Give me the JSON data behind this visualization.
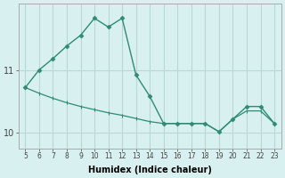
{
  "xlabel": "Humidex (Indice chaleur)",
  "x_values": [
    5,
    6,
    7,
    8,
    9,
    10,
    11,
    12,
    13,
    14,
    15,
    16,
    17,
    18,
    19,
    20,
    21,
    22,
    23
  ],
  "y_main": [
    10.72,
    11.0,
    11.18,
    11.38,
    11.55,
    11.82,
    11.68,
    11.82,
    10.92,
    10.58,
    10.15,
    10.15,
    10.15,
    10.15,
    10.02,
    10.22,
    10.42,
    10.42,
    10.15
  ],
  "y_second": [
    10.72,
    10.63,
    10.55,
    10.48,
    10.42,
    10.37,
    10.32,
    10.28,
    10.23,
    10.18,
    10.15,
    10.15,
    10.15,
    10.15,
    10.02,
    10.22,
    10.35,
    10.35,
    10.15
  ],
  "line_color": "#2e8b74",
  "marker": "D",
  "marker_size": 2.5,
  "bg_color": "#d9f0f0",
  "grid_color": "#b8d8d8",
  "yticks": [
    10,
    11
  ],
  "xticks": [
    5,
    6,
    7,
    8,
    9,
    10,
    11,
    12,
    13,
    14,
    15,
    16,
    17,
    18,
    19,
    20,
    21,
    22,
    23
  ],
  "ylim": [
    9.75,
    12.05
  ],
  "xlim": [
    4.5,
    23.5
  ]
}
